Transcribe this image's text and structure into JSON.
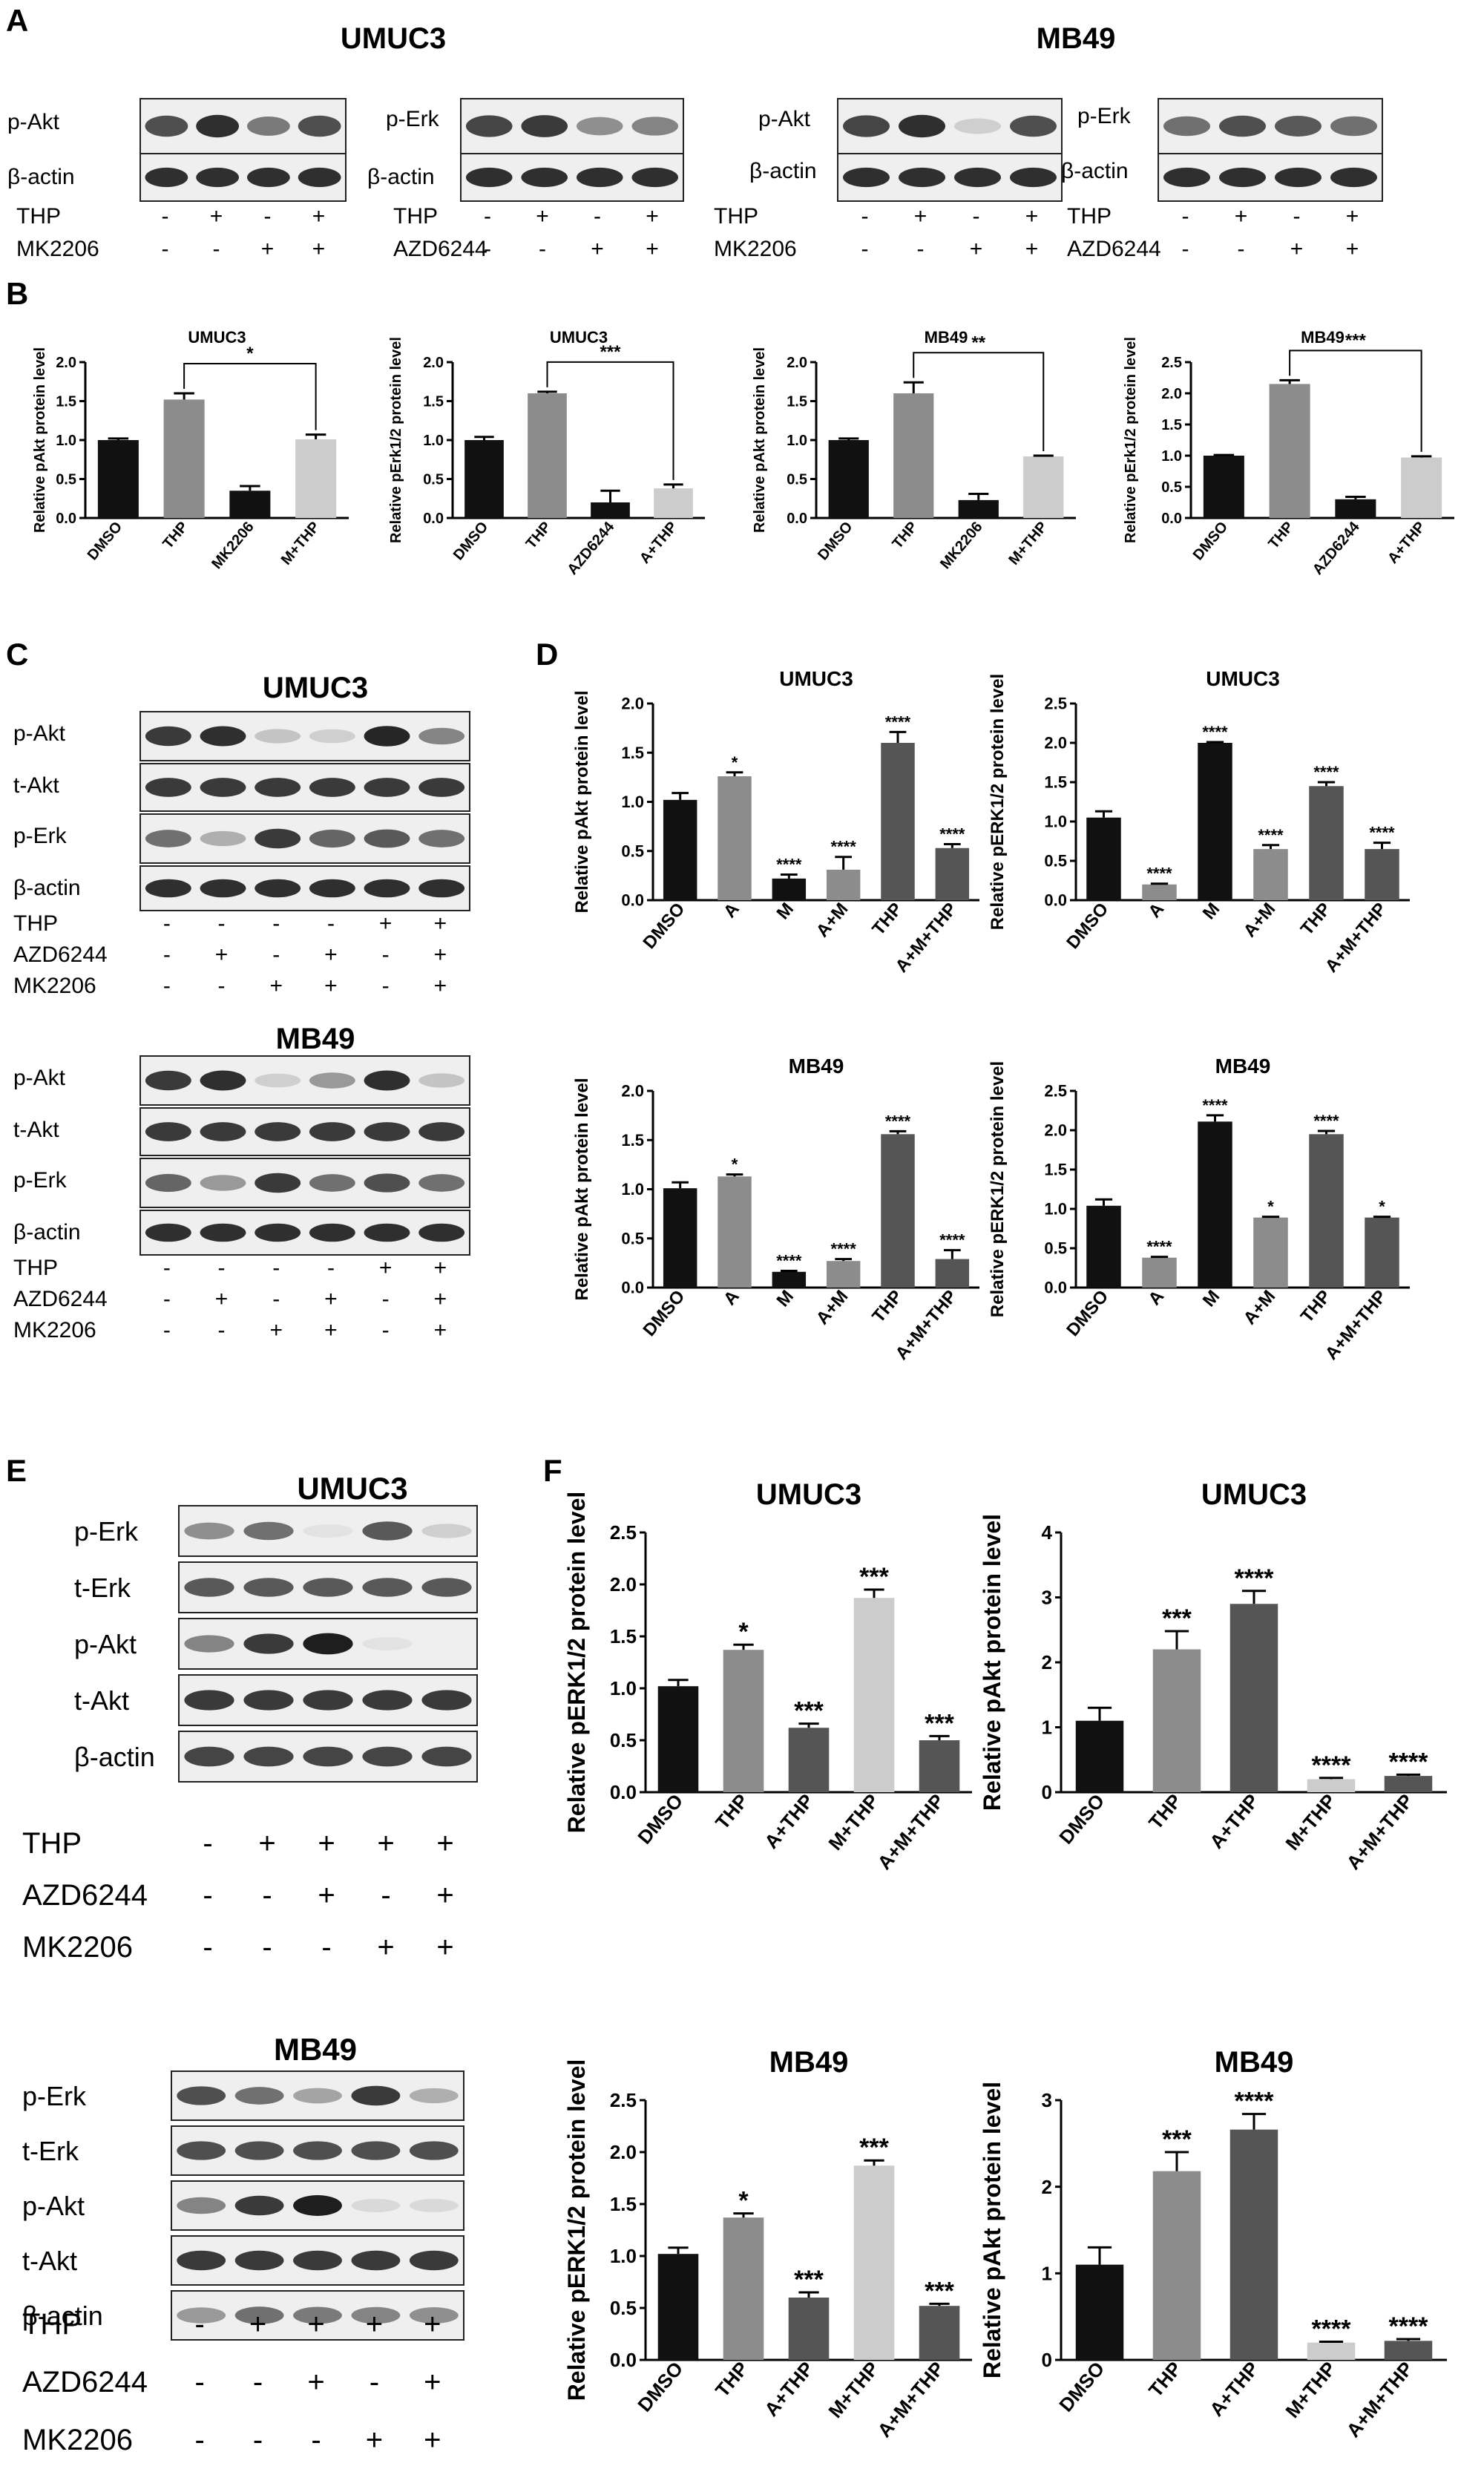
{
  "panels": {
    "A": "A",
    "B": "B",
    "C": "C",
    "D": "D",
    "E": "E",
    "F": "F"
  },
  "cells": {
    "umuc3": "UMUC3",
    "mb49": "MB49"
  },
  "blot_labels": {
    "pakt": "p-Akt",
    "perk": "p-Erk",
    "takt": "t-Akt",
    "terk": "t-Erk",
    "bactin": "β-actin"
  },
  "treatments": {
    "thp": "THP",
    "mk2206": "MK2206",
    "azd6244": "AZD6244",
    "plus": "+",
    "minus": "-"
  },
  "colors": {
    "black": "#111111",
    "darkgray": "#555555",
    "gray": "#8c8c8c",
    "midgray": "#777777",
    "lightgray": "#cccccc",
    "band": "#1a1a1a"
  },
  "chart_data": [
    {
      "id": "B1",
      "type": "bar",
      "title": "UMUC3",
      "ylabel": "Relative pAkt protein level",
      "categories": [
        "DMSO",
        "THP",
        "MK2206",
        "M+THP"
      ],
      "values": [
        1.0,
        1.52,
        0.35,
        1.01
      ],
      "errors": [
        0.02,
        0.08,
        0.06,
        0.06
      ],
      "ylim": [
        0,
        2.0
      ],
      "yticks": [
        "0.0",
        "0.5",
        "1.0",
        "1.5",
        "2.0"
      ],
      "sig": [
        {
          "from": 1,
          "to": 3,
          "label": "*"
        }
      ],
      "labels": [
        "",
        "",
        "",
        ""
      ]
    },
    {
      "id": "B2",
      "type": "bar",
      "title": "UMUC3",
      "ylabel": "Relative pErk1/2 protein level",
      "categories": [
        "DMSO",
        "THP",
        "AZD6244",
        "A+THP"
      ],
      "values": [
        1.0,
        1.6,
        0.2,
        0.38
      ],
      "errors": [
        0.04,
        0.02,
        0.15,
        0.05
      ],
      "ylim": [
        0,
        2.0
      ],
      "yticks": [
        "0.0",
        "0.5",
        "1.0",
        "1.5",
        "2.0"
      ],
      "sig": [
        {
          "from": 1,
          "to": 3,
          "label": "***"
        }
      ],
      "labels": [
        "",
        "",
        "",
        ""
      ]
    },
    {
      "id": "B3",
      "type": "bar",
      "title": "MB49",
      "ylabel": "Relative pAkt protein level",
      "categories": [
        "DMSO",
        "THP",
        "MK2206",
        "M+THP"
      ],
      "values": [
        1.0,
        1.6,
        0.23,
        0.79
      ],
      "errors": [
        0.02,
        0.14,
        0.08,
        0.01
      ],
      "ylim": [
        0,
        2.0
      ],
      "yticks": [
        "0.0",
        "0.5",
        "1.0",
        "1.5",
        "2.0"
      ],
      "sig": [
        {
          "from": 1,
          "to": 3,
          "label": "**"
        }
      ],
      "labels": [
        "",
        "",
        "",
        ""
      ]
    },
    {
      "id": "B4",
      "type": "bar",
      "title": "MB49",
      "ylabel": "Relative pErk1/2 protein level",
      "categories": [
        "DMSO",
        "THP",
        "AZD6244",
        "A+THP"
      ],
      "values": [
        1.0,
        2.15,
        0.3,
        0.97
      ],
      "errors": [
        0.01,
        0.06,
        0.04,
        0.02
      ],
      "ylim": [
        0,
        2.5
      ],
      "yticks": [
        "0.0",
        "0.5",
        "1.0",
        "1.5",
        "2.0",
        "2.5"
      ],
      "sig": [
        {
          "from": 1,
          "to": 3,
          "label": "***"
        }
      ],
      "labels": [
        "",
        "",
        "",
        ""
      ]
    },
    {
      "id": "D1",
      "type": "bar",
      "title": "UMUC3",
      "ylabel": "Relative pAkt protein level",
      "categories": [
        "DMSO",
        "A",
        "M",
        "A+M",
        "THP",
        "A+M+THP"
      ],
      "values": [
        1.02,
        1.26,
        0.22,
        0.31,
        1.6,
        0.53
      ],
      "errors": [
        0.07,
        0.04,
        0.04,
        0.13,
        0.11,
        0.04
      ],
      "ylim": [
        0,
        2.0
      ],
      "yticks": [
        "0.0",
        "0.5",
        "1.0",
        "1.5",
        "2.0"
      ],
      "sig": [],
      "labels": [
        "",
        "*",
        "****",
        "****",
        "****",
        "****"
      ]
    },
    {
      "id": "D2",
      "type": "bar",
      "title": "UMUC3",
      "ylabel": "Relative pERK1/2 protein level",
      "categories": [
        "DMSO",
        "A",
        "M",
        "A+M",
        "THP",
        "A+M+THP"
      ],
      "values": [
        1.05,
        0.2,
        2.0,
        0.65,
        1.45,
        0.65
      ],
      "errors": [
        0.08,
        0.01,
        0.01,
        0.05,
        0.05,
        0.08
      ],
      "ylim": [
        0,
        2.5
      ],
      "yticks": [
        "0.0",
        "0.5",
        "1.0",
        "1.5",
        "2.0",
        "2.5"
      ],
      "sig": [],
      "labels": [
        "",
        "****",
        "****",
        "****",
        "****",
        "****"
      ]
    },
    {
      "id": "D3",
      "type": "bar",
      "title": "MB49",
      "ylabel": "Relative pAkt protein level",
      "categories": [
        "DMSO",
        "A",
        "M",
        "A+M",
        "THP",
        "A+M+THP"
      ],
      "values": [
        1.01,
        1.13,
        0.16,
        0.27,
        1.56,
        0.29
      ],
      "errors": [
        0.06,
        0.02,
        0.01,
        0.02,
        0.03,
        0.09
      ],
      "ylim": [
        0,
        2.0
      ],
      "yticks": [
        "0.0",
        "0.5",
        "1.0",
        "1.5",
        "2.0"
      ],
      "sig": [],
      "labels": [
        "",
        "*",
        "****",
        "****",
        "****",
        "****"
      ]
    },
    {
      "id": "D4",
      "type": "bar",
      "title": "MB49",
      "ylabel": "Relative pERK1/2 protein level",
      "categories": [
        "DMSO",
        "A",
        "M",
        "A+M",
        "THP",
        "A+M+THP"
      ],
      "values": [
        1.04,
        0.38,
        2.11,
        0.89,
        1.95,
        0.89
      ],
      "errors": [
        0.08,
        0.01,
        0.08,
        0.01,
        0.04,
        0.01
      ],
      "ylim": [
        0,
        2.5
      ],
      "yticks": [
        "0.0",
        "0.5",
        "1.0",
        "1.5",
        "2.0",
        "2.5"
      ],
      "sig": [],
      "labels": [
        "",
        "****",
        "****",
        "*",
        "****",
        "*"
      ]
    },
    {
      "id": "F1",
      "type": "bar",
      "title": "UMUC3",
      "ylabel": "Relative pERK1/2 protein level",
      "categories": [
        "DMSO",
        "THP",
        "A+THP",
        "M+THP",
        "A+M+THP"
      ],
      "values": [
        1.02,
        1.37,
        0.62,
        1.87,
        0.5
      ],
      "errors": [
        0.06,
        0.05,
        0.04,
        0.08,
        0.04
      ],
      "ylim": [
        0,
        2.5
      ],
      "yticks": [
        "0.0",
        "0.5",
        "1.0",
        "1.5",
        "2.0",
        "2.5"
      ],
      "sig": [],
      "labels": [
        "",
        "*",
        "***",
        "***",
        "***"
      ]
    },
    {
      "id": "F2",
      "type": "bar",
      "title": "UMUC3",
      "ylabel": "Relative pAkt protein level",
      "categories": [
        "DMSO",
        "THP",
        "A+THP",
        "M+THP",
        "A+M+THP"
      ],
      "values": [
        1.1,
        2.2,
        2.9,
        0.2,
        0.25
      ],
      "errors": [
        0.2,
        0.28,
        0.2,
        0.02,
        0.02
      ],
      "ylim": [
        0,
        4
      ],
      "yticks": [
        "0",
        "1",
        "2",
        "3",
        "4"
      ],
      "sig": [],
      "labels": [
        "",
        "***",
        "****",
        "****",
        "****"
      ]
    },
    {
      "id": "F3",
      "type": "bar",
      "title": "MB49",
      "ylabel": "Relative pERK1/2 protein level",
      "categories": [
        "DMSO",
        "THP",
        "A+THP",
        "M+THP",
        "A+M+THP"
      ],
      "values": [
        1.02,
        1.37,
        0.6,
        1.87,
        0.52
      ],
      "errors": [
        0.06,
        0.04,
        0.05,
        0.05,
        0.02
      ],
      "ylim": [
        0,
        2.5
      ],
      "yticks": [
        "0.0",
        "0.5",
        "1.0",
        "1.5",
        "2.0",
        "2.5"
      ],
      "sig": [],
      "labels": [
        "",
        "*",
        "***",
        "***",
        "***"
      ]
    },
    {
      "id": "F4",
      "type": "bar",
      "title": "MB49",
      "ylabel": "Relative pAkt protein level",
      "categories": [
        "DMSO",
        "THP",
        "A+THP",
        "M+THP",
        "A+M+THP"
      ],
      "values": [
        1.1,
        2.18,
        2.66,
        0.2,
        0.22
      ],
      "errors": [
        0.2,
        0.22,
        0.18,
        0.01,
        0.02
      ],
      "ylim": [
        0,
        3
      ],
      "yticks": [
        "0",
        "1",
        "2",
        "3"
      ],
      "sig": [],
      "labels": [
        "",
        "***",
        "****",
        "****",
        "****"
      ]
    }
  ]
}
